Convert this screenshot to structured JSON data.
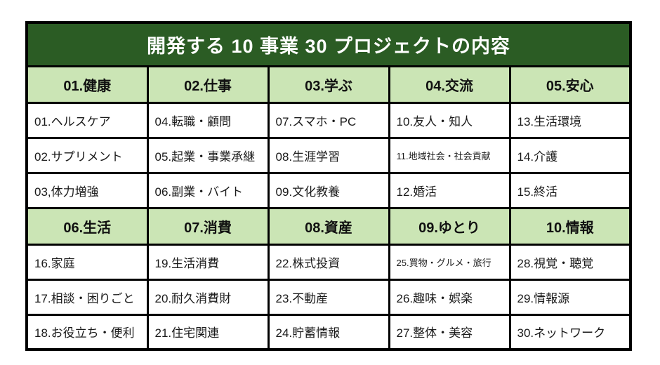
{
  "table": {
    "title": "開発する 10 事業 30 プロジェクトの内容",
    "colors": {
      "title_bg": "#2b5c24",
      "title_text": "#ffffff",
      "category_bg": "#cbe5b5",
      "border": "#000000",
      "cell_text": "#1a1a1a"
    },
    "sections": [
      {
        "headers": [
          "01.健康",
          "02.仕事",
          "03.学ぶ",
          "04.交流",
          "05.安心"
        ],
        "rows": [
          [
            "01.ヘルスケア",
            "04.転職・顧問",
            "07.スマホ・PC",
            "10.友人・知人",
            "13.生活環境"
          ],
          [
            "02.サプリメント",
            "05.起業・事業承継",
            "08.生涯学習",
            "11.地域社会・社会貢献",
            "14.介護"
          ],
          [
            "03,体力増強",
            "06.副業・バイト",
            "09.文化教養",
            "12.婚活",
            "15.終活"
          ]
        ]
      },
      {
        "headers": [
          "06.生活",
          "07.消費",
          "08.資産",
          "09.ゆとり",
          "10.情報"
        ],
        "rows": [
          [
            "16.家庭",
            "19.生活消費",
            "22.株式投資",
            "25.買物・グルメ・旅行",
            "28.視覚・聴覚"
          ],
          [
            "17.相談・困りごと",
            "20.耐久消費財",
            "23.不動産",
            "26.趣味・娯楽",
            "29.情報源"
          ],
          [
            "18.お役立ち・便利",
            "21.住宅関連",
            "24.貯蓄情報",
            "27.整体・美容",
            "30.ネットワーク"
          ]
        ]
      }
    ]
  }
}
